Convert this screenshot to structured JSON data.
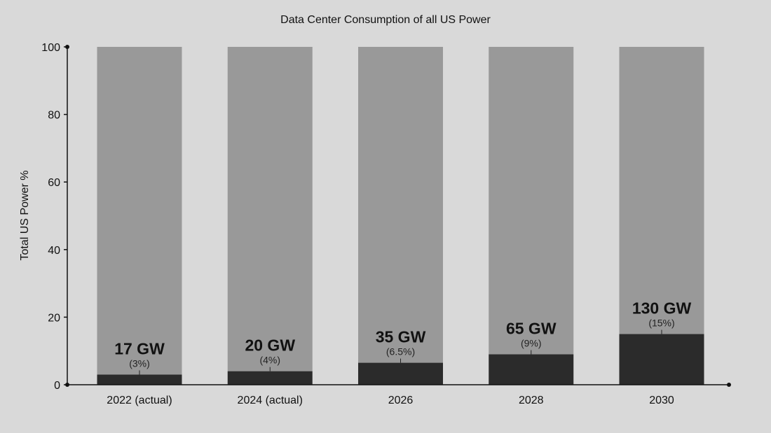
{
  "chart_data": {
    "type": "bar",
    "stacked": true,
    "title": "Data Center Consumption of all US Power",
    "xlabel": "",
    "ylabel": "Total US Power %",
    "ylim": [
      0,
      100
    ],
    "yticks": [
      0,
      20,
      40,
      60,
      80,
      100
    ],
    "grid": false,
    "categories": [
      "2022 (actual)",
      "2024 (actual)",
      "2026",
      "2028",
      "2030"
    ],
    "series": [
      {
        "values": [
          3,
          4,
          6.5,
          9,
          15
        ],
        "color": "#2b2b2b"
      },
      {
        "values": [
          97,
          96,
          93.5,
          91,
          85
        ],
        "color": "#999999"
      }
    ],
    "data_labels": [
      {
        "gw": "17 GW",
        "pct": "(3%)"
      },
      {
        "gw": "20 GW",
        "pct": "(4%)"
      },
      {
        "gw": "35 GW",
        "pct": "(6.5%)"
      },
      {
        "gw": "65 GW",
        "pct": "(9%)"
      },
      {
        "gw": "130 GW",
        "pct": "(15%)"
      }
    ]
  },
  "colors": {
    "background": "#d9d9d9",
    "data_center": "#2b2b2b",
    "rest": "#999999",
    "axis": "#111111"
  }
}
